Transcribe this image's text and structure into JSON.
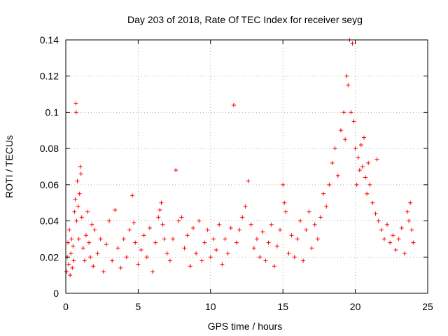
{
  "chart_data": {
    "type": "scatter",
    "title": "Day 203 of 2018, Rate Of TEC Index for receiver seyg",
    "xlabel": "GPS time / hours",
    "ylabel": "ROTI / TECUs",
    "xlim": [
      0,
      25
    ],
    "ylim": [
      0,
      0.14
    ],
    "xticks": [
      0,
      5,
      10,
      15,
      20,
      25
    ],
    "xtick_labels": [
      "0",
      "5",
      "10",
      "15",
      "20",
      "25"
    ],
    "yticks": [
      0,
      0.02,
      0.04,
      0.06,
      0.08,
      0.1,
      0.12,
      0.14
    ],
    "ytick_labels": [
      "0",
      "0.02",
      "0.04",
      "0.06",
      "0.08",
      "0.1",
      "0.12",
      "0.14"
    ],
    "grid": true,
    "marker": "+",
    "color": "#ff0000",
    "series": [
      {
        "name": "ROTI",
        "points": [
          [
            0.05,
            0.012
          ],
          [
            0.1,
            0.02
          ],
          [
            0.15,
            0.028
          ],
          [
            0.2,
            0.016
          ],
          [
            0.25,
            0.035
          ],
          [
            0.3,
            0.01
          ],
          [
            0.35,
            0.022
          ],
          [
            0.4,
            0.03
          ],
          [
            0.45,
            0.014
          ],
          [
            0.5,
            0.026
          ],
          [
            0.55,
            0.018
          ],
          [
            0.6,
            0.045
          ],
          [
            0.65,
            0.052
          ],
          [
            0.7,
            0.105
          ],
          [
            0.72,
            0.1
          ],
          [
            0.75,
            0.04
          ],
          [
            0.8,
            0.062
          ],
          [
            0.85,
            0.048
          ],
          [
            0.9,
            0.03
          ],
          [
            0.95,
            0.055
          ],
          [
            1.0,
            0.07
          ],
          [
            1.05,
            0.066
          ],
          [
            1.1,
            0.042
          ],
          [
            1.2,
            0.025
          ],
          [
            1.3,
            0.018
          ],
          [
            1.4,
            0.032
          ],
          [
            1.5,
            0.045
          ],
          [
            1.6,
            0.028
          ],
          [
            1.7,
            0.02
          ],
          [
            1.8,
            0.038
          ],
          [
            1.9,
            0.015
          ],
          [
            2.0,
            0.035
          ],
          [
            2.2,
            0.022
          ],
          [
            2.4,
            0.03
          ],
          [
            2.6,
            0.012
          ],
          [
            2.8,
            0.027
          ],
          [
            3.0,
            0.04
          ],
          [
            3.2,
            0.018
          ],
          [
            3.4,
            0.046
          ],
          [
            3.6,
            0.025
          ],
          [
            3.8,
            0.014
          ],
          [
            4.0,
            0.03
          ],
          [
            4.2,
            0.02
          ],
          [
            4.4,
            0.035
          ],
          [
            4.6,
            0.054
          ],
          [
            4.7,
            0.039
          ],
          [
            4.8,
            0.028
          ],
          [
            5.0,
            0.016
          ],
          [
            5.2,
            0.024
          ],
          [
            5.4,
            0.032
          ],
          [
            5.6,
            0.02
          ],
          [
            5.8,
            0.036
          ],
          [
            6.0,
            0.012
          ],
          [
            6.2,
            0.028
          ],
          [
            6.4,
            0.042
          ],
          [
            6.5,
            0.046
          ],
          [
            6.6,
            0.05
          ],
          [
            6.7,
            0.038
          ],
          [
            6.8,
            0.03
          ],
          [
            7.0,
            0.022
          ],
          [
            7.2,
            0.018
          ],
          [
            7.4,
            0.03
          ],
          [
            7.6,
            0.068
          ],
          [
            7.8,
            0.04
          ],
          [
            8.0,
            0.042
          ],
          [
            8.2,
            0.025
          ],
          [
            8.4,
            0.032
          ],
          [
            8.6,
            0.015
          ],
          [
            8.8,
            0.036
          ],
          [
            9.0,
            0.022
          ],
          [
            9.2,
            0.04
          ],
          [
            9.4,
            0.018
          ],
          [
            9.6,
            0.028
          ],
          [
            9.8,
            0.035
          ],
          [
            10.0,
            0.02
          ],
          [
            10.2,
            0.03
          ],
          [
            10.4,
            0.024
          ],
          [
            10.6,
            0.038
          ],
          [
            10.8,
            0.016
          ],
          [
            11.0,
            0.03
          ],
          [
            11.2,
            0.022
          ],
          [
            11.4,
            0.036
          ],
          [
            11.6,
            0.104
          ],
          [
            11.8,
            0.028
          ],
          [
            12.0,
            0.035
          ],
          [
            12.2,
            0.042
          ],
          [
            12.4,
            0.048
          ],
          [
            12.6,
            0.062
          ],
          [
            12.8,
            0.038
          ],
          [
            13.0,
            0.025
          ],
          [
            13.2,
            0.03
          ],
          [
            13.4,
            0.02
          ],
          [
            13.6,
            0.034
          ],
          [
            13.8,
            0.018
          ],
          [
            14.0,
            0.028
          ],
          [
            14.2,
            0.038
          ],
          [
            14.4,
            0.015
          ],
          [
            14.6,
            0.026
          ],
          [
            14.8,
            0.035
          ],
          [
            15.0,
            0.06
          ],
          [
            15.1,
            0.05
          ],
          [
            15.2,
            0.045
          ],
          [
            15.4,
            0.022
          ],
          [
            15.6,
            0.032
          ],
          [
            15.8,
            0.02
          ],
          [
            16.0,
            0.03
          ],
          [
            16.2,
            0.04
          ],
          [
            16.4,
            0.018
          ],
          [
            16.6,
            0.035
          ],
          [
            16.8,
            0.045
          ],
          [
            17.0,
            0.025
          ],
          [
            17.2,
            0.038
          ],
          [
            17.4,
            0.03
          ],
          [
            17.6,
            0.042
          ],
          [
            17.8,
            0.055
          ],
          [
            18.0,
            0.048
          ],
          [
            18.2,
            0.06
          ],
          [
            18.4,
            0.072
          ],
          [
            18.6,
            0.08
          ],
          [
            18.8,
            0.065
          ],
          [
            19.0,
            0.09
          ],
          [
            19.2,
            0.1
          ],
          [
            19.3,
            0.085
          ],
          [
            19.4,
            0.12
          ],
          [
            19.5,
            0.115
          ],
          [
            19.6,
            0.14
          ],
          [
            19.7,
            0.1
          ],
          [
            19.8,
            0.138
          ],
          [
            19.9,
            0.095
          ],
          [
            20.0,
            0.08
          ],
          [
            20.1,
            0.06
          ],
          [
            20.2,
            0.075
          ],
          [
            20.3,
            0.068
          ],
          [
            20.4,
            0.082
          ],
          [
            20.5,
            0.07
          ],
          [
            20.6,
            0.086
          ],
          [
            20.7,
            0.064
          ],
          [
            20.8,
            0.055
          ],
          [
            20.9,
            0.072
          ],
          [
            21.0,
            0.06
          ],
          [
            21.2,
            0.05
          ],
          [
            21.4,
            0.044
          ],
          [
            21.5,
            0.074
          ],
          [
            21.6,
            0.04
          ],
          [
            21.8,
            0.035
          ],
          [
            22.0,
            0.03
          ],
          [
            22.2,
            0.038
          ],
          [
            22.4,
            0.028
          ],
          [
            22.6,
            0.032
          ],
          [
            22.8,
            0.024
          ],
          [
            23.0,
            0.03
          ],
          [
            23.2,
            0.036
          ],
          [
            23.4,
            0.022
          ],
          [
            23.6,
            0.045
          ],
          [
            23.7,
            0.04
          ],
          [
            23.8,
            0.05
          ],
          [
            23.9,
            0.035
          ],
          [
            24.0,
            0.028
          ]
        ]
      }
    ]
  }
}
